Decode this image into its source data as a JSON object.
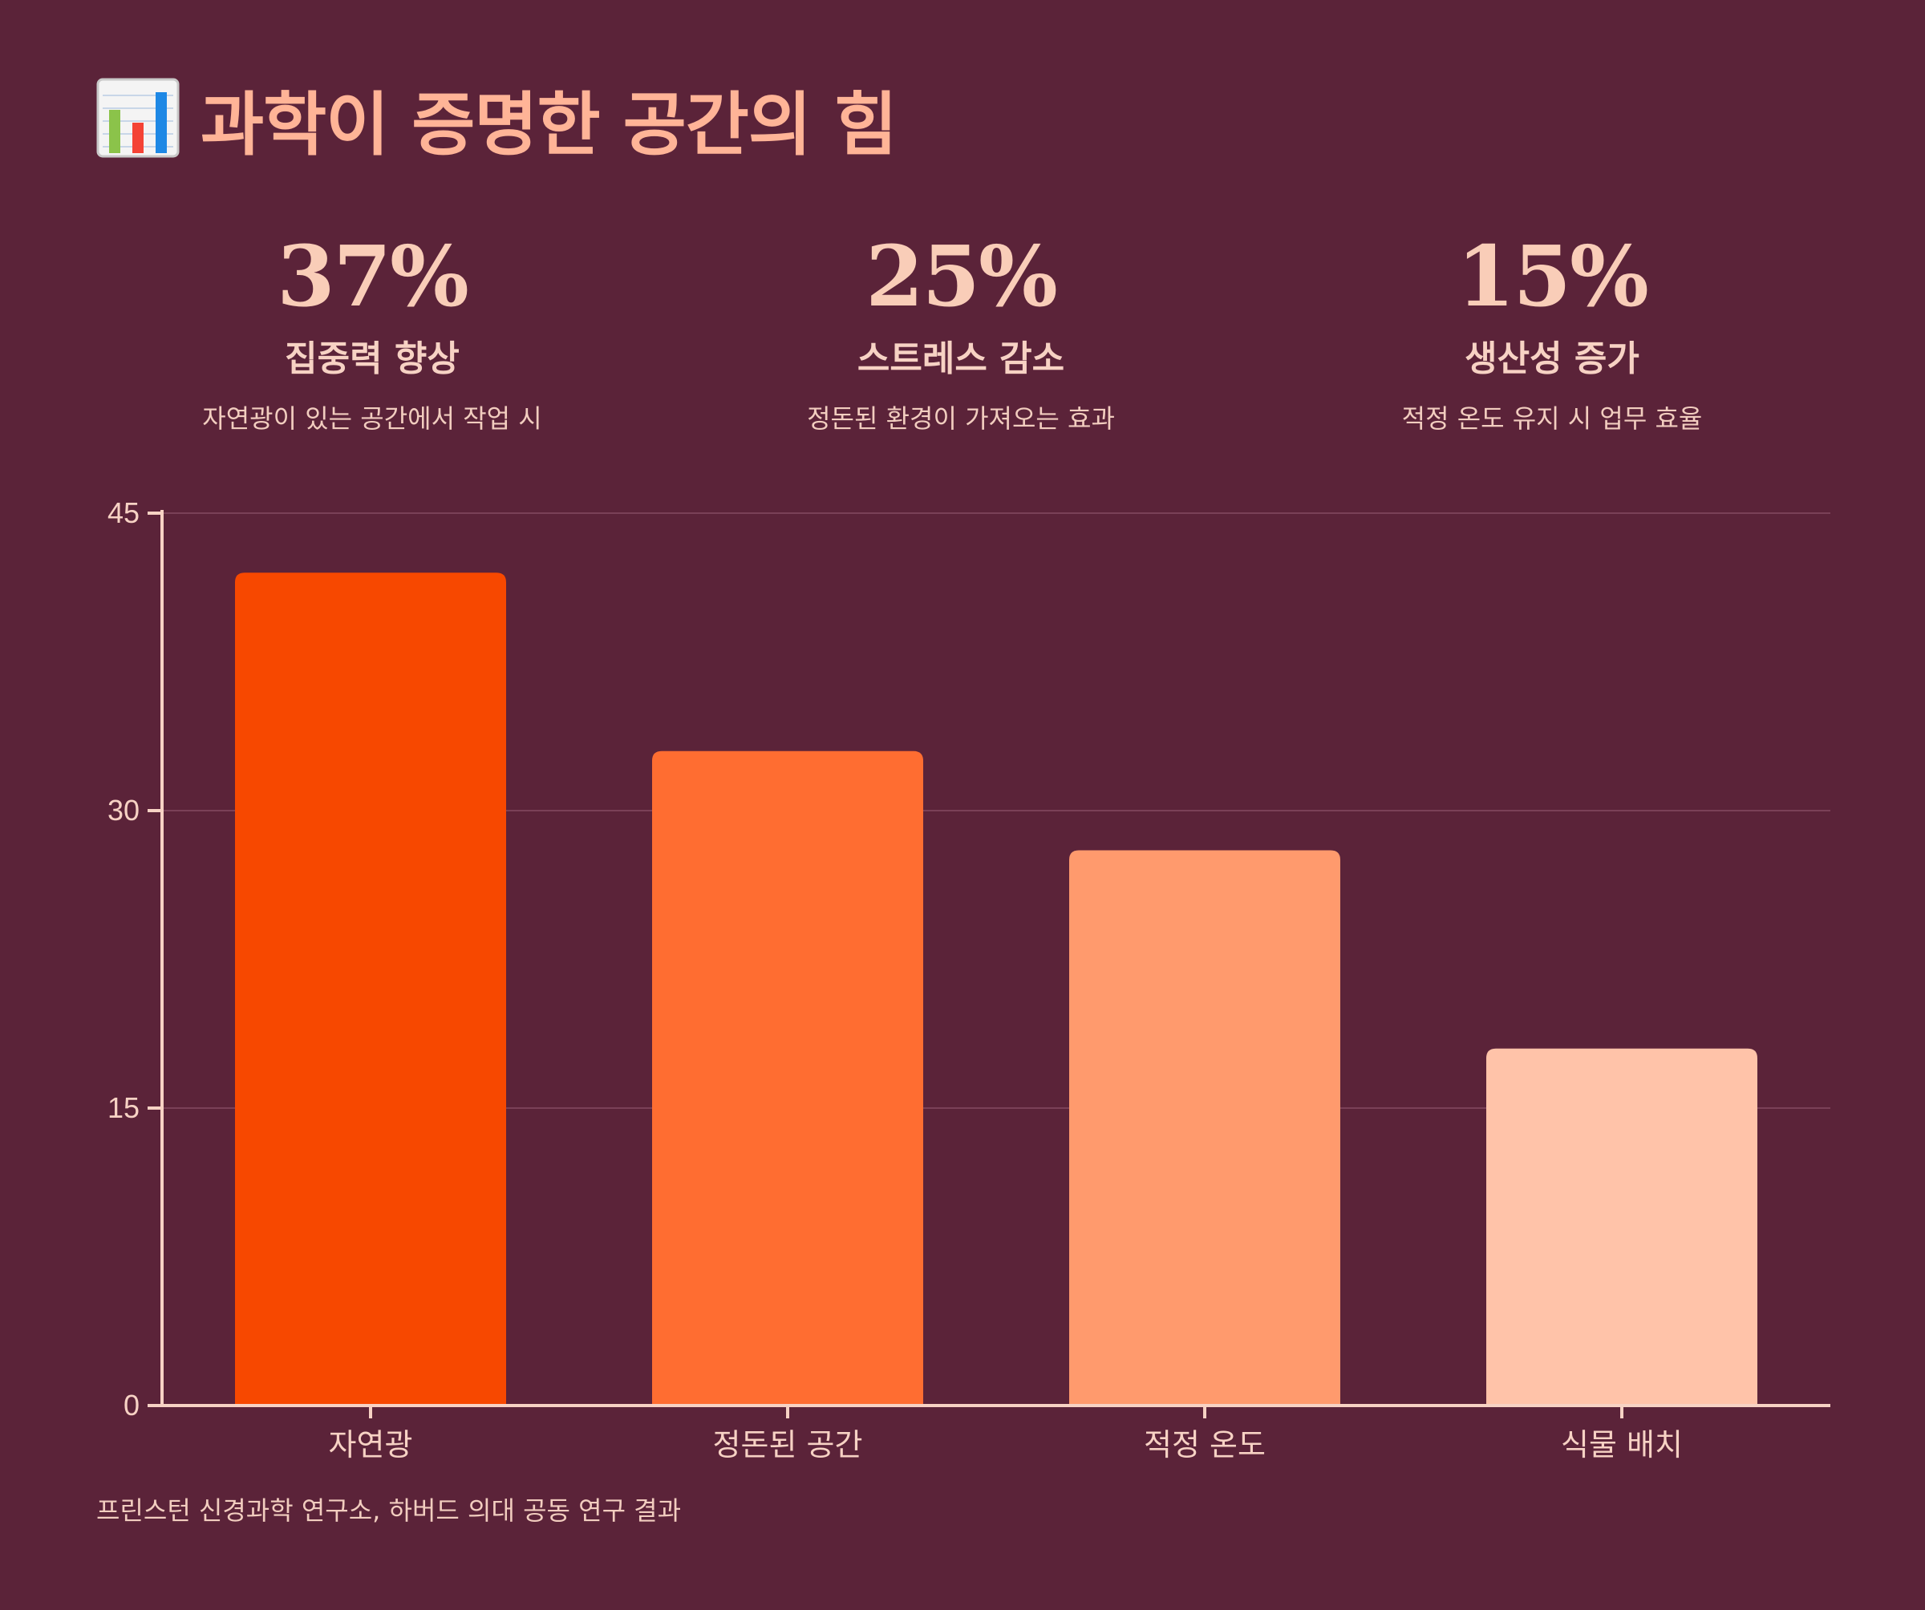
{
  "header": {
    "icon": "bar-chart-emoji-icon",
    "title": "과학이 증명한 공간의 힘"
  },
  "stats": [
    {
      "value": "37%",
      "label": "집중력 향상",
      "desc": "자연광이 있는 공간에서 작업 시"
    },
    {
      "value": "25%",
      "label": "스트레스 감소",
      "desc": "정돈된 환경이 가져오는 효과"
    },
    {
      "value": "15%",
      "label": "생산성 증가",
      "desc": "적정 온도 유지 시 업무 효율"
    }
  ],
  "chart_data": {
    "type": "bar",
    "title": "",
    "xlabel": "",
    "ylabel": "",
    "categories": [
      "자연광",
      "정돈된 공간",
      "적정 온도",
      "식물 배치"
    ],
    "values": [
      42,
      33,
      28,
      18
    ],
    "ylim": [
      0,
      45
    ],
    "yticks": [
      0,
      15,
      30,
      45
    ],
    "grid": true,
    "legend": "none",
    "colors": [
      "#f74800",
      "#ff6d31",
      "#ff9a6d",
      "#ffc3a9"
    ]
  },
  "theme": {
    "background": "#5b2339",
    "axis": "#f7d2c4",
    "grid": "#7a4057",
    "tick_text": "#f7d2c4"
  },
  "footnote": "프린스턴 신경과학 연구소, 하버드 의대 공동 연구 결과"
}
